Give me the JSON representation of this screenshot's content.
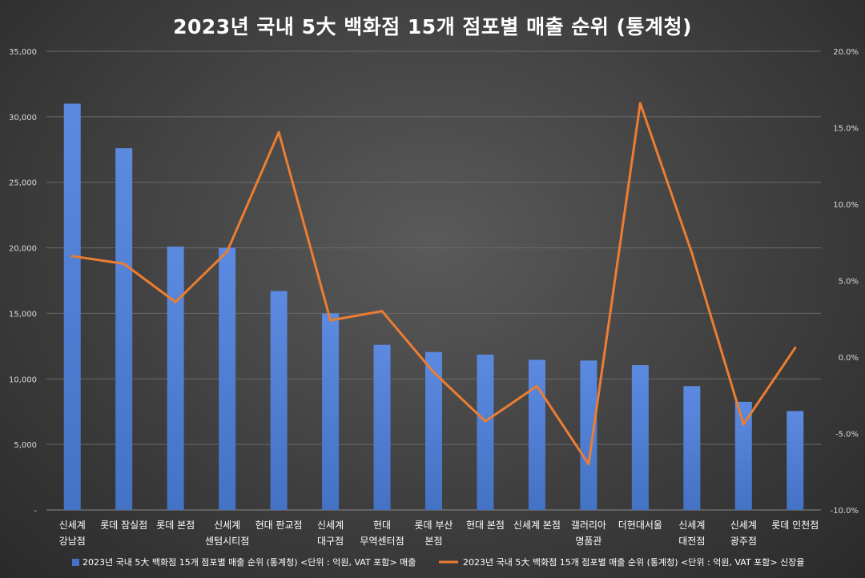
{
  "title": "2023년 국내 5大 백화점 15개 점포별 매출 순위 (통계청)",
  "chart_data": {
    "type": "bar",
    "title": "2023년 국내 5大 백화점 15개 점포별 매출 순위 (통계청)",
    "categories": [
      [
        "신세계",
        "강남점"
      ],
      [
        "롯데 잠실점"
      ],
      [
        "롯데 본점"
      ],
      [
        "신세계",
        "센텀시티점"
      ],
      [
        "현대 판교점"
      ],
      [
        "신세계",
        "대구점"
      ],
      [
        "현대",
        "무역센터점"
      ],
      [
        "롯데 부산",
        "본점"
      ],
      [
        "현대 본점"
      ],
      [
        "신세계 본점"
      ],
      [
        "갤러리아",
        "명품관"
      ],
      [
        "더현대서울"
      ],
      [
        "신세계",
        "대전점"
      ],
      [
        "신세계",
        "광주점"
      ],
      [
        "롯데 인천점"
      ]
    ],
    "y_axis": {
      "min": 0,
      "max": 35000,
      "ticks": [
        {
          "value": 0,
          "label": "-"
        },
        {
          "value": 5000,
          "label": "5,000"
        },
        {
          "value": 10000,
          "label": "10,000"
        },
        {
          "value": 15000,
          "label": "15,000"
        },
        {
          "value": 20000,
          "label": "20,000"
        },
        {
          "value": 25000,
          "label": "25,000"
        },
        {
          "value": 30000,
          "label": "30,000"
        },
        {
          "value": 35000,
          "label": "35,000"
        }
      ]
    },
    "y2_axis": {
      "min": -10,
      "max": 20,
      "ticks": [
        {
          "value": -10,
          "label": "-10.0%"
        },
        {
          "value": -5,
          "label": "-5.0%"
        },
        {
          "value": 0,
          "label": "0.0%"
        },
        {
          "value": 5,
          "label": "5.0%"
        },
        {
          "value": 10,
          "label": "10.0%"
        },
        {
          "value": 15,
          "label": "15.0%"
        },
        {
          "value": 20,
          "label": "20.0%"
        }
      ]
    },
    "grid": true,
    "legend_position": "bottom",
    "series": [
      {
        "name": "2023년 국내 5大 백화점 15개 점포별 매출 순위 (통계청) <단위 : 억원, VAT 포함> 매출",
        "type": "bar",
        "axis": "left",
        "color": "#4472c4",
        "values": [
          31000,
          27600,
          20100,
          20000,
          16700,
          15000,
          12600,
          12050,
          11850,
          11450,
          11400,
          11050,
          9450,
          8250,
          7550
        ]
      },
      {
        "name": "2023년 국내 5大 백화점 15개 점포별 매출 순위 (통계청) <단위 : 억원, VAT 포함> 신장율",
        "type": "line",
        "axis": "right",
        "color": "#ed7d31",
        "values": [
          6.6,
          6.1,
          3.6,
          6.9,
          14.7,
          2.4,
          3.0,
          -1.0,
          -4.2,
          -1.9,
          -7.0,
          16.6,
          6.8,
          -4.4,
          0.6
        ]
      }
    ]
  }
}
